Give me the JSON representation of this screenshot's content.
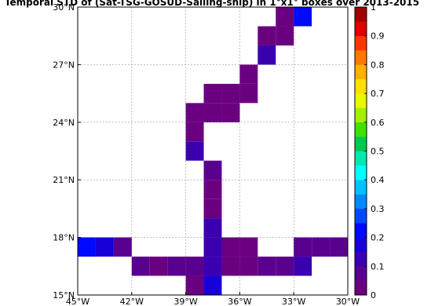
{
  "chart_data": {
    "type": "heatmap",
    "title": "Temporal STD of (Sat-TSG-GOSUD-Sailing-ship) in 1°x1° boxes over 2013-2015",
    "xlabel": "",
    "ylabel": "",
    "x_range": [
      -45,
      -30
    ],
    "y_range": [
      15,
      30
    ],
    "x_ticks": [
      {
        "value": -45,
        "label": "45°W"
      },
      {
        "value": -42,
        "label": "42°W"
      },
      {
        "value": -39,
        "label": "39°W"
      },
      {
        "value": -36,
        "label": "36°W"
      },
      {
        "value": -33,
        "label": "33°W"
      },
      {
        "value": -30,
        "label": "30°W"
      }
    ],
    "y_ticks": [
      {
        "value": 15,
        "label": "15°N"
      },
      {
        "value": 18,
        "label": "18°N"
      },
      {
        "value": 21,
        "label": "21°N"
      },
      {
        "value": 24,
        "label": "24°N"
      },
      {
        "value": 27,
        "label": "27°N"
      },
      {
        "value": 30,
        "label": "30°N"
      }
    ],
    "grid": true,
    "colorbar": {
      "min": 0,
      "max": 1,
      "levels": 20,
      "tick_labels": [
        "0",
        "0.1",
        "0.2",
        "0.3",
        "0.4",
        "0.5",
        "0.6",
        "0.7",
        "0.8",
        "0.9",
        "1"
      ],
      "colors": [
        "#6a0080",
        "#5a008f",
        "#3a00b0",
        "#1800d8",
        "#0008ff",
        "#0048ff",
        "#0088ff",
        "#00c0ff",
        "#00ffff",
        "#00e8b0",
        "#00c850",
        "#40e000",
        "#a0f000",
        "#e8f800",
        "#ffe000",
        "#ffb000",
        "#ff7800",
        "#ff3800",
        "#e00000",
        "#a00000"
      ]
    },
    "cells": [
      {
        "lon": -34,
        "lat": 29,
        "value": 0.03
      },
      {
        "lon": -33,
        "lat": 29,
        "value": 0.22
      },
      {
        "lon": -35,
        "lat": 28,
        "value": 0.03
      },
      {
        "lon": -34,
        "lat": 28,
        "value": 0.03
      },
      {
        "lon": -35,
        "lat": 27,
        "value": 0.12
      },
      {
        "lon": -36,
        "lat": 26,
        "value": 0.03
      },
      {
        "lon": -36,
        "lat": 25,
        "value": 0.03
      },
      {
        "lon": -37,
        "lat": 25,
        "value": 0.03
      },
      {
        "lon": -38,
        "lat": 25,
        "value": 0.03
      },
      {
        "lon": -37,
        "lat": 24,
        "value": 0.03
      },
      {
        "lon": -38,
        "lat": 24,
        "value": 0.03
      },
      {
        "lon": -39,
        "lat": 24,
        "value": 0.03
      },
      {
        "lon": -39,
        "lat": 23,
        "value": 0.03
      },
      {
        "lon": -39,
        "lat": 22,
        "value": 0.12
      },
      {
        "lon": -38,
        "lat": 21,
        "value": 0.08
      },
      {
        "lon": -38,
        "lat": 20,
        "value": 0.03
      },
      {
        "lon": -38,
        "lat": 19,
        "value": 0.03
      },
      {
        "lon": -38,
        "lat": 18,
        "value": 0.12
      },
      {
        "lon": -45,
        "lat": 17,
        "value": 0.22
      },
      {
        "lon": -44,
        "lat": 17,
        "value": 0.18
      },
      {
        "lon": -43,
        "lat": 17,
        "value": 0.05
      },
      {
        "lon": -38,
        "lat": 17,
        "value": 0.12
      },
      {
        "lon": -37,
        "lat": 17,
        "value": 0.03
      },
      {
        "lon": -36,
        "lat": 17,
        "value": 0.03
      },
      {
        "lon": -33,
        "lat": 17,
        "value": 0.08
      },
      {
        "lon": -32,
        "lat": 17,
        "value": 0.05
      },
      {
        "lon": -31,
        "lat": 17,
        "value": 0.08
      },
      {
        "lon": -42,
        "lat": 16,
        "value": 0.08
      },
      {
        "lon": -41,
        "lat": 16,
        "value": 0.03
      },
      {
        "lon": -40,
        "lat": 16,
        "value": 0.08
      },
      {
        "lon": -39,
        "lat": 16,
        "value": 0.08
      },
      {
        "lon": -38,
        "lat": 16,
        "value": 0.12
      },
      {
        "lon": -37,
        "lat": 16,
        "value": 0.03
      },
      {
        "lon": -36,
        "lat": 16,
        "value": 0.03
      },
      {
        "lon": -35,
        "lat": 16,
        "value": 0.08
      },
      {
        "lon": -34,
        "lat": 16,
        "value": 0.08
      },
      {
        "lon": -33,
        "lat": 16,
        "value": 0.12
      },
      {
        "lon": -39,
        "lat": 15,
        "value": 0.03
      },
      {
        "lon": -38,
        "lat": 15,
        "value": 0.18
      }
    ]
  }
}
